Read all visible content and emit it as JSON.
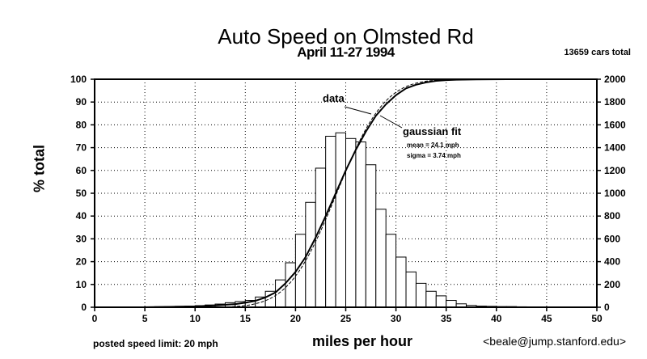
{
  "chart_data": {
    "type": "bar",
    "title": "Auto Speed on Olmsted Rd",
    "subtitle": "April 11-27 1994",
    "total_note": "13659 cars total",
    "xlabel": "miles per hour",
    "ylabel": "% total",
    "xlim": [
      0,
      50
    ],
    "ylim": [
      0,
      100
    ],
    "y2lim": [
      0,
      2000
    ],
    "x_ticks": [
      "0",
      "5",
      "10",
      "15",
      "20",
      "25",
      "30",
      "35",
      "40",
      "45",
      "50"
    ],
    "y_ticks": [
      "0",
      "10",
      "20",
      "30",
      "40",
      "50",
      "60",
      "70",
      "80",
      "90",
      "100"
    ],
    "y2_ticks": [
      "0",
      "200",
      "400",
      "600",
      "800",
      "1000",
      "1200",
      "1400",
      "1600",
      "1800",
      "2000"
    ],
    "grid": true,
    "histogram": {
      "bin_width": 1,
      "bin_starts": [
        5,
        6,
        7,
        8,
        9,
        10,
        11,
        12,
        13,
        14,
        15,
        16,
        17,
        18,
        19,
        20,
        21,
        22,
        23,
        24,
        25,
        26,
        27,
        28,
        29,
        30,
        31,
        32,
        33,
        34,
        35,
        36,
        37,
        38,
        39,
        40,
        41,
        42
      ],
      "counts": [
        4,
        5,
        6,
        8,
        10,
        14,
        20,
        28,
        40,
        50,
        60,
        90,
        140,
        240,
        390,
        640,
        920,
        1220,
        1500,
        1530,
        1480,
        1450,
        1250,
        860,
        640,
        440,
        310,
        210,
        140,
        100,
        60,
        30,
        16,
        10,
        8,
        6,
        6,
        4
      ]
    },
    "series": [
      {
        "name": "data",
        "type": "line",
        "x": [
          5,
          8,
          10,
          12,
          14,
          15,
          16,
          17,
          18,
          19,
          20,
          21,
          22,
          23,
          24,
          25,
          26,
          27,
          28,
          29,
          30,
          31,
          32,
          33,
          34,
          35,
          36,
          38,
          41
        ],
        "y": [
          0,
          0.2,
          0.4,
          0.8,
          1.4,
          2,
          2.8,
          4.3,
          6.5,
          10.5,
          15.5,
          22,
          30.5,
          40,
          50,
          60,
          69,
          77,
          84,
          89,
          93,
          96,
          97.6,
          98.6,
          99.3,
          99.6,
          99.8,
          99.9,
          100
        ]
      },
      {
        "name": "gaussian fit",
        "type": "line",
        "mean": 24.1,
        "sigma": 3.74
      }
    ],
    "annotations": {
      "data_label": "data",
      "fit_label": "gaussian fit",
      "mean_text": "mean = 24.1 mph",
      "sigma_text": "sigma = 3.74 mph"
    }
  },
  "footer": {
    "speed_limit": "posted speed limit: 20 mph",
    "contact": "<beale@jump.stanford.edu>"
  },
  "colors": {
    "ink": "#000000",
    "background": "#ffffff",
    "bar_fill": "#ffffff"
  }
}
